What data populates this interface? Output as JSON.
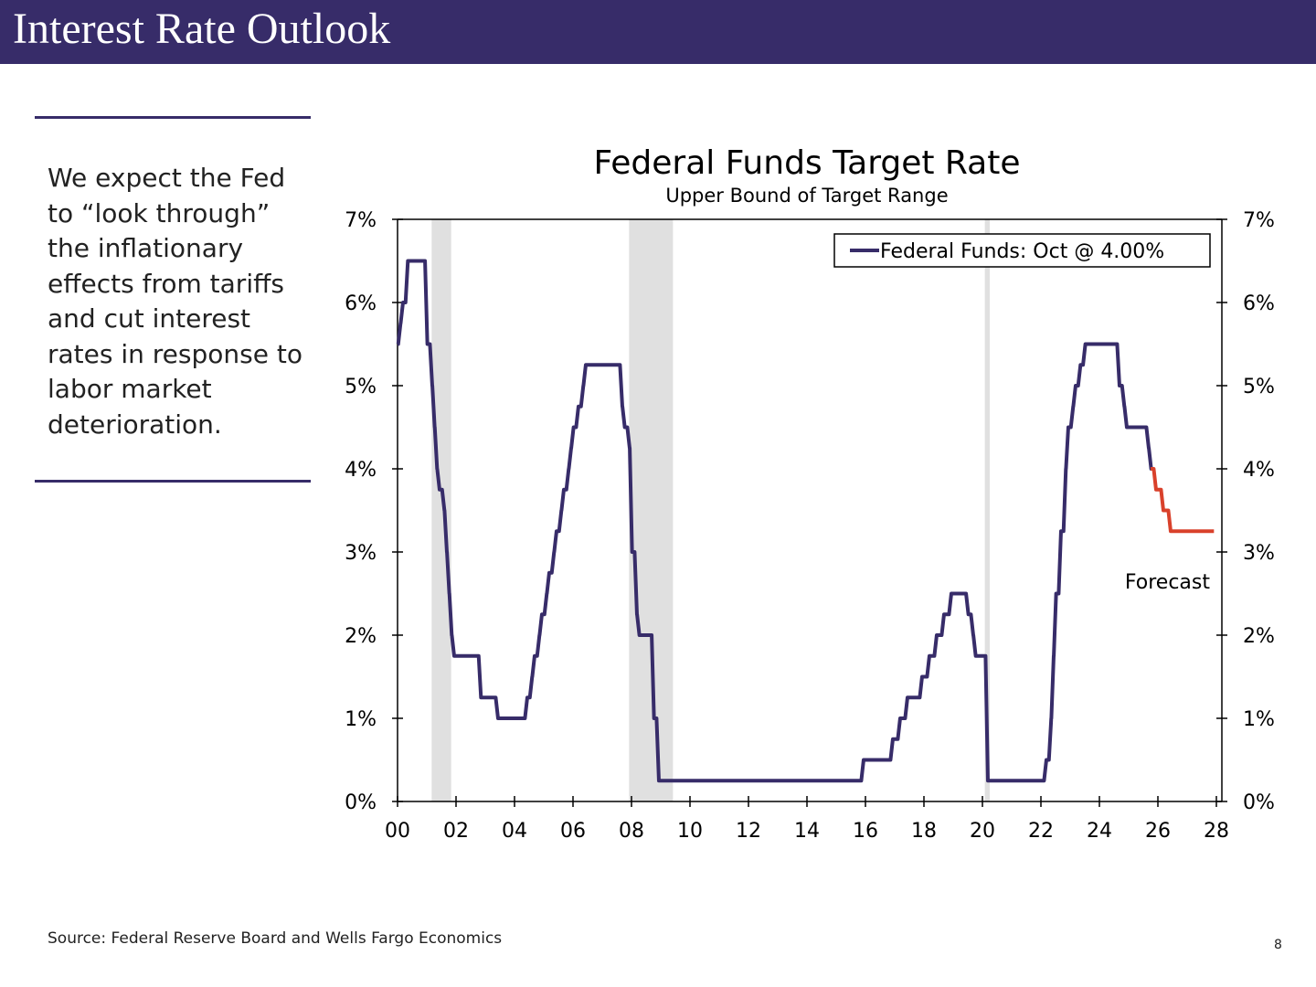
{
  "header": {
    "title": "Interest Rate Outlook"
  },
  "sidebar": {
    "text": "We expect the Fed to “look through” the inflationary effects from tariffs and cut interest rates in response to labor market deterioration."
  },
  "footer": {
    "source": "Source: Federal Reserve Board and Wells Fargo Economics",
    "page_number": "8"
  },
  "colors": {
    "brand": "#372c69",
    "series": "#372c69",
    "forecast": "#d9412b",
    "recession": "#e0e0e0"
  },
  "chart_data": {
    "type": "line",
    "title": "Federal Funds Target Rate",
    "subtitle": "Upper Bound of Target Range",
    "xlim": [
      2000,
      2028
    ],
    "ylim": [
      0,
      7
    ],
    "x_tick_labels": [
      "00",
      "02",
      "04",
      "06",
      "08",
      "10",
      "12",
      "14",
      "16",
      "18",
      "20",
      "22",
      "24",
      "26",
      "28"
    ],
    "y_tick_labels": [
      "0%",
      "1%",
      "2%",
      "3%",
      "4%",
      "5%",
      "6%",
      "7%"
    ],
    "legend": {
      "label": "Federal Funds: Oct @ 4.00%",
      "placement": "top-right"
    },
    "annotation": "Forecast",
    "recessions": [
      [
        "2001-03",
        "2001-11"
      ],
      [
        "2007-12",
        "2009-06"
      ],
      [
        "2020-02",
        "2020-04"
      ]
    ],
    "series": [
      {
        "name": "Federal Funds: Oct @ 4.00%",
        "kind": "actual",
        "points": [
          [
            "2000-01",
            5.5
          ],
          [
            "2000-02",
            5.75
          ],
          [
            "2000-03",
            6.0
          ],
          [
            "2000-05",
            6.5
          ],
          [
            "2001-01",
            5.5
          ],
          [
            "2001-03",
            5.0
          ],
          [
            "2001-04",
            4.5
          ],
          [
            "2001-05",
            4.0
          ],
          [
            "2001-06",
            3.75
          ],
          [
            "2001-08",
            3.5
          ],
          [
            "2001-09",
            3.0
          ],
          [
            "2001-10",
            2.5
          ],
          [
            "2001-11",
            2.0
          ],
          [
            "2001-12",
            1.75
          ],
          [
            "2002-11",
            1.25
          ],
          [
            "2003-06",
            1.0
          ],
          [
            "2004-06",
            1.25
          ],
          [
            "2004-08",
            1.5
          ],
          [
            "2004-09",
            1.75
          ],
          [
            "2004-11",
            2.0
          ],
          [
            "2004-12",
            2.25
          ],
          [
            "2005-02",
            2.5
          ],
          [
            "2005-03",
            2.75
          ],
          [
            "2005-05",
            3.0
          ],
          [
            "2005-06",
            3.25
          ],
          [
            "2005-08",
            3.5
          ],
          [
            "2005-09",
            3.75
          ],
          [
            "2005-11",
            4.0
          ],
          [
            "2005-12",
            4.25
          ],
          [
            "2006-01",
            4.5
          ],
          [
            "2006-03",
            4.75
          ],
          [
            "2006-05",
            5.0
          ],
          [
            "2006-06",
            5.25
          ],
          [
            "2007-09",
            4.75
          ],
          [
            "2007-10",
            4.5
          ],
          [
            "2007-12",
            4.25
          ],
          [
            "2008-01",
            3.0
          ],
          [
            "2008-03",
            2.25
          ],
          [
            "2008-04",
            2.0
          ],
          [
            "2008-10",
            1.0
          ],
          [
            "2008-12",
            0.25
          ],
          [
            "2015-12",
            0.5
          ],
          [
            "2016-12",
            0.75
          ],
          [
            "2017-03",
            1.0
          ],
          [
            "2017-06",
            1.25
          ],
          [
            "2017-12",
            1.5
          ],
          [
            "2018-03",
            1.75
          ],
          [
            "2018-06",
            2.0
          ],
          [
            "2018-09",
            2.25
          ],
          [
            "2018-12",
            2.5
          ],
          [
            "2019-07",
            2.25
          ],
          [
            "2019-09",
            2.0
          ],
          [
            "2019-10",
            1.75
          ],
          [
            "2020-03",
            0.25
          ],
          [
            "2022-03",
            0.5
          ],
          [
            "2022-05",
            1.0
          ],
          [
            "2022-06",
            1.75
          ],
          [
            "2022-07",
            2.5
          ],
          [
            "2022-09",
            3.25
          ],
          [
            "2022-11",
            4.0
          ],
          [
            "2022-12",
            4.5
          ],
          [
            "2023-02",
            4.75
          ],
          [
            "2023-03",
            5.0
          ],
          [
            "2023-05",
            5.25
          ],
          [
            "2023-07",
            5.5
          ],
          [
            "2024-09",
            5.0
          ],
          [
            "2024-11",
            4.75
          ],
          [
            "2024-12",
            4.5
          ],
          [
            "2025-09",
            4.25
          ],
          [
            "2025-10",
            4.0
          ]
        ]
      },
      {
        "kind": "forecast",
        "points": [
          [
            "2025-10",
            4.0
          ],
          [
            "2025-12",
            3.75
          ],
          [
            "2026-03",
            3.5
          ],
          [
            "2026-06",
            3.25
          ],
          [
            "2027-12",
            3.25
          ]
        ]
      }
    ]
  }
}
